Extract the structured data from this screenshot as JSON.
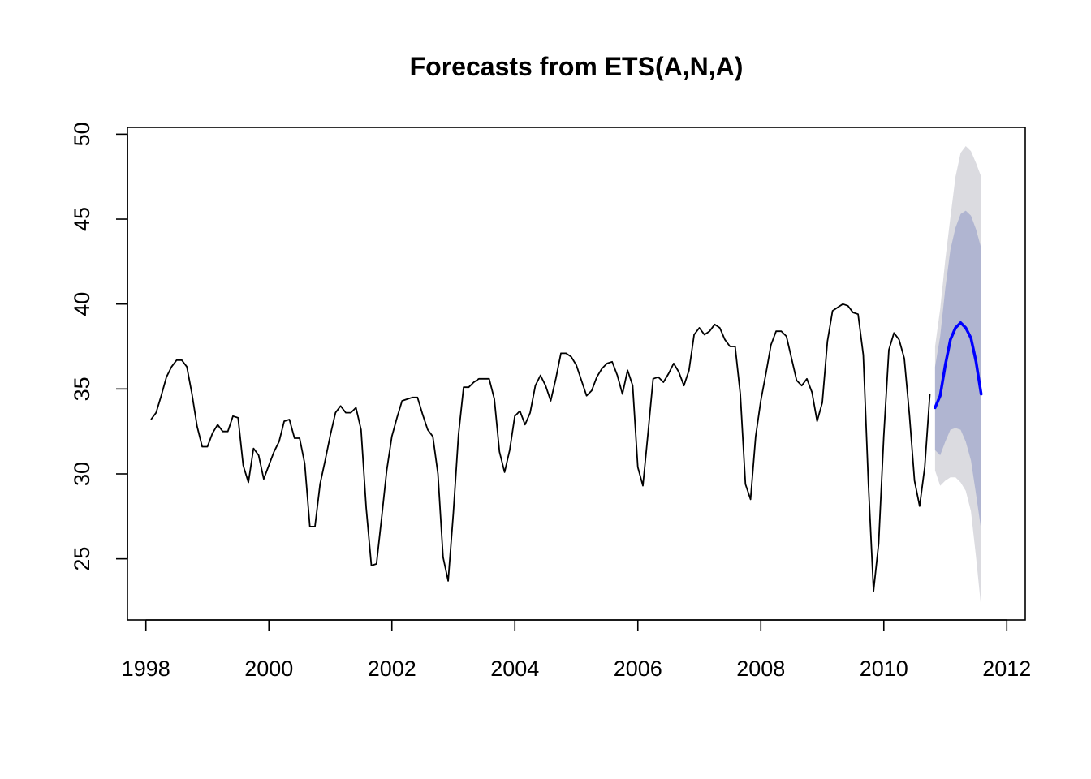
{
  "chart_data": {
    "type": "line",
    "title": "Forecasts from ETS(A,N,A)",
    "xlabel": "",
    "ylabel": "",
    "xlim": [
      1997.7,
      2012.3
    ],
    "ylim": [
      21.4,
      50.4
    ],
    "x_ticks": [
      1998,
      2000,
      2002,
      2004,
      2006,
      2008,
      2010,
      2012
    ],
    "x_tick_labels": [
      "1998",
      "2000",
      "2002",
      "2004",
      "2006",
      "2008",
      "2010",
      "2012"
    ],
    "y_ticks": [
      25,
      30,
      35,
      40,
      45,
      50
    ],
    "y_tick_labels": [
      "25",
      "30",
      "35",
      "40",
      "45",
      "50"
    ],
    "grid": false,
    "legend": "none",
    "observed": {
      "start": 1998.083,
      "step": 0.08333,
      "color": "#000000",
      "values": [
        33.2,
        33.6,
        34.6,
        35.7,
        36.3,
        36.7,
        36.7,
        36.3,
        34.7,
        32.8,
        31.6,
        31.6,
        32.4,
        32.9,
        32.5,
        32.5,
        33.4,
        33.3,
        30.5,
        29.5,
        31.5,
        31.1,
        29.7,
        30.5,
        31.3,
        31.9,
        33.1,
        33.2,
        32.1,
        32.1,
        30.6,
        26.9,
        26.9,
        29.4,
        30.8,
        32.3,
        33.6,
        34.0,
        33.6,
        33.6,
        33.9,
        32.6,
        28.0,
        24.6,
        24.7,
        27.4,
        30.2,
        32.2,
        33.3,
        34.3,
        34.4,
        34.5,
        34.5,
        33.5,
        32.6,
        32.2,
        30.0,
        25.1,
        23.7,
        27.7,
        32.3,
        35.1,
        35.1,
        35.4,
        35.6,
        35.6,
        35.6,
        34.4,
        31.3,
        30.1,
        31.4,
        33.4,
        33.7,
        32.9,
        33.6,
        35.2,
        35.8,
        35.2,
        34.3,
        35.6,
        37.1,
        37.1,
        36.9,
        36.4,
        35.5,
        34.6,
        34.9,
        35.7,
        36.2,
        36.5,
        36.6,
        35.8,
        34.7,
        36.1,
        35.2,
        30.4,
        29.3,
        32.4,
        35.6,
        35.7,
        35.4,
        35.9,
        36.5,
        36.0,
        35.2,
        36.1,
        38.2,
        38.6,
        38.2,
        38.4,
        38.8,
        38.6,
        37.9,
        37.5,
        37.5,
        34.7,
        29.4,
        28.5,
        32.2,
        34.3,
        35.9,
        37.6,
        38.4,
        38.4,
        38.1,
        36.8,
        35.5,
        35.2,
        35.6,
        34.8,
        33.1,
        34.2,
        37.8,
        39.6,
        39.8,
        40.0,
        39.9,
        39.5,
        39.4,
        37.0,
        29.4,
        23.1,
        25.9,
        32.2,
        37.3,
        38.3,
        37.9,
        36.8,
        33.5,
        29.6,
        28.1,
        30.4,
        34.7
      ]
    },
    "forecast": {
      "start": 2010.833,
      "step": 0.08333,
      "color": "#0000ff",
      "point": [
        33.9,
        34.6,
        36.4,
        37.9,
        38.6,
        38.9,
        38.6,
        38.0,
        36.6,
        34.7
      ],
      "lower80": [
        31.4,
        31.1,
        31.9,
        32.6,
        32.7,
        32.6,
        31.9,
        30.8,
        28.8,
        26.7
      ],
      "upper80": [
        36.3,
        38.1,
        40.9,
        43.2,
        44.5,
        45.3,
        45.5,
        45.2,
        44.4,
        43.3
      ],
      "lower95": [
        30.2,
        29.3,
        29.6,
        29.8,
        29.8,
        29.5,
        29.0,
        27.8,
        25.1,
        22.1
      ],
      "upper95": [
        37.5,
        39.7,
        42.6,
        45.1,
        47.5,
        48.9,
        49.3,
        49.0,
        48.3,
        47.5
      ],
      "band80_color": "#b0b5d1",
      "band95_color": "#dbdbe0"
    }
  }
}
